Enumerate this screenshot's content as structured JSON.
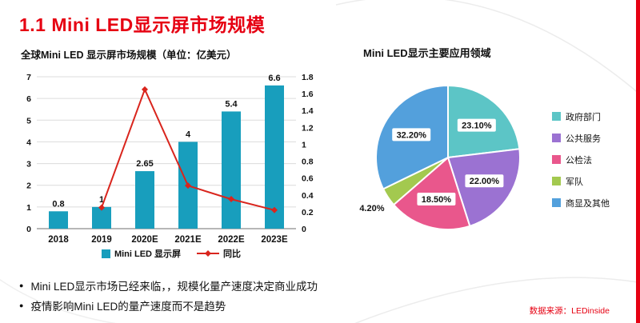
{
  "page": {
    "title": "1.1 Mini LED显示屏市场规模",
    "source": "数据来源：LEDinside",
    "bullets": [
      "Mini LED显示市场已经来临，，规模化量产速度决定商业成功",
      "疫情影响Mini LED的量产速度而不是趋势"
    ],
    "accent_color": "#e60012"
  },
  "chart_data": [
    {
      "type": "bar",
      "title": "全球Mini LED 显示屏市场规模（单位：亿美元）",
      "categories": [
        "2018",
        "2019",
        "2020E",
        "2021E",
        "2022E",
        "2023E"
      ],
      "series": [
        {
          "name": "Mini LED 显示屏",
          "type": "bar",
          "axis": "left",
          "color": "#189ebd",
          "values": [
            0.8,
            1,
            2.65,
            4,
            5.4,
            6.6
          ],
          "labels": [
            "0.8",
            "1",
            "2.65",
            "4",
            "5.4",
            "6.6"
          ]
        },
        {
          "name": "同比",
          "type": "line",
          "axis": "right",
          "color": "#d9251d",
          "values": [
            null,
            0.25,
            1.65,
            0.51,
            0.35,
            0.22
          ]
        }
      ],
      "left_axis": {
        "min": 0,
        "max": 7,
        "ticks": [
          "0",
          "1",
          "2",
          "3",
          "4",
          "5",
          "6",
          "7"
        ]
      },
      "right_axis": {
        "min": 0,
        "max": 1.8,
        "ticks": [
          "0",
          "0.2",
          "0.4",
          "0.6",
          "0.8",
          "1",
          "1.2",
          "1.4",
          "1.6",
          "1.8"
        ]
      },
      "grid": true,
      "legend_position": "bottom"
    },
    {
      "type": "pie",
      "title": "Mini LED显示主要应用领域",
      "legend_position": "right",
      "slices": [
        {
          "label": "政府部门",
          "value": 23.1,
          "display": "23.10%",
          "color": "#5cc5c6"
        },
        {
          "label": "公共服务",
          "value": 22.0,
          "display": "22.00%",
          "color": "#9b72d2"
        },
        {
          "label": "公检法",
          "value": 18.5,
          "display": "18.50%",
          "color": "#e9578c"
        },
        {
          "label": "军队",
          "value": 4.2,
          "display": "4.20%",
          "color": "#a3c94f"
        },
        {
          "label": "商显及其他",
          "value": 32.2,
          "display": "32.20%",
          "color": "#53a0dc"
        }
      ]
    }
  ]
}
